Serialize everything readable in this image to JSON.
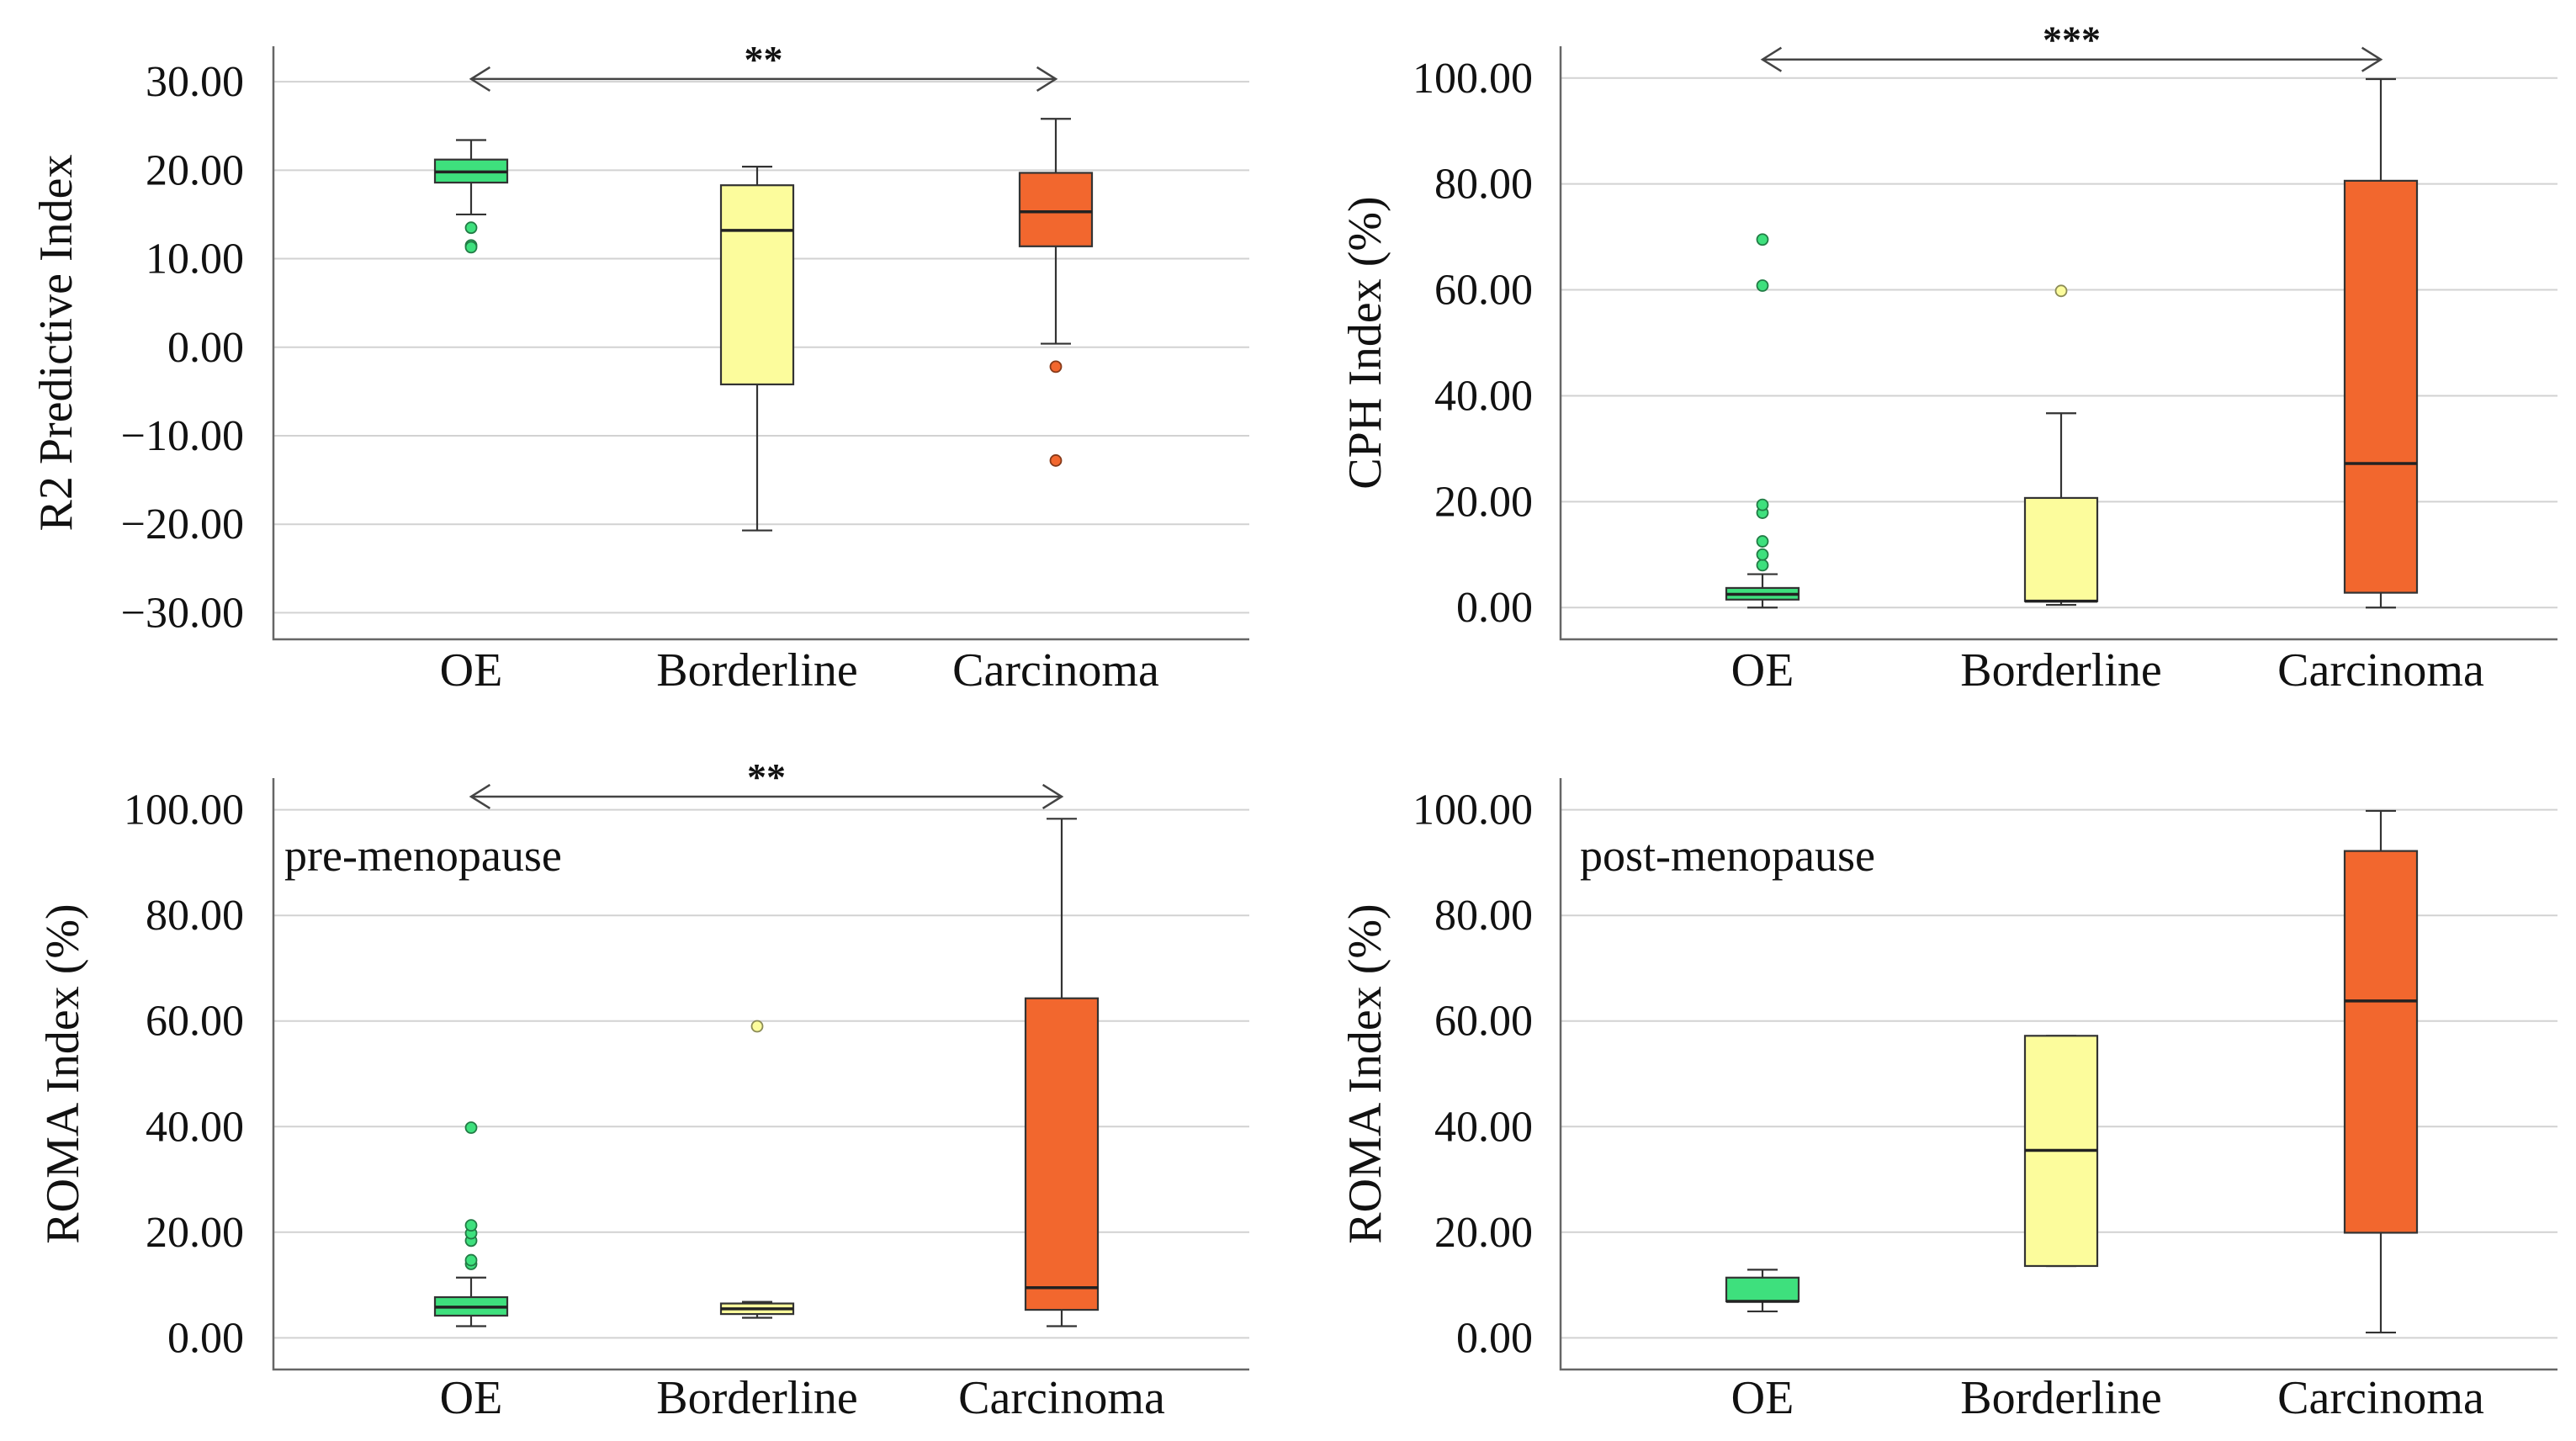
{
  "colors": {
    "OE": "#3ee07d",
    "Borderline": "#fcfc9c",
    "Carcinoma": "#f2672e"
  },
  "chart_data": [
    {
      "type": "box",
      "panel": "top-left",
      "ylabel": "R2 Predictive Index",
      "ylim": [
        -33,
        34
      ],
      "ticks": [
        30,
        20,
        10,
        0,
        -10,
        -20,
        -30
      ],
      "tick_labels": [
        "30.00",
        "20.00",
        "10.00",
        "0.00",
        "−10.00",
        "−20.00",
        "−30.00"
      ],
      "categories": [
        "OE",
        "Borderline",
        "Carcinoma"
      ],
      "boxes": [
        {
          "category": "OE",
          "whisker_low": 15.0,
          "q1": 18.6,
          "median": 19.8,
          "q3": 21.2,
          "whisker_high": 23.4,
          "outliers": [
            13.5,
            11.5,
            11.3
          ]
        },
        {
          "category": "Borderline",
          "whisker_low": -20.7,
          "q1": -4.2,
          "median": 13.2,
          "q3": 18.3,
          "whisker_high": 20.4,
          "outliers": []
        },
        {
          "category": "Carcinoma",
          "whisker_low": 0.4,
          "q1": 11.4,
          "median": 15.3,
          "q3": 19.7,
          "whisker_high": 25.8,
          "outliers": [
            -2.2,
            -12.8
          ]
        }
      ],
      "significance": {
        "from": "OE",
        "to": "Carcinoma",
        "label": "**",
        "y": 30.3
      },
      "annotation": ""
    },
    {
      "type": "box",
      "panel": "top-right",
      "ylabel": "CPH Index (%)",
      "ylim": [
        -6,
        106
      ],
      "ticks": [
        100,
        80,
        60,
        40,
        20,
        0
      ],
      "tick_labels": [
        "100.00",
        "80.00",
        "60.00",
        "40.00",
        "20.00",
        "0.00"
      ],
      "categories": [
        "OE",
        "Borderline",
        "Carcinoma"
      ],
      "boxes": [
        {
          "category": "OE",
          "whisker_low": 0.0,
          "q1": 1.5,
          "median": 2.5,
          "q3": 3.7,
          "whisker_high": 6.3,
          "outliers": [
            8.0,
            10.0,
            12.5,
            17.9,
            19.4,
            60.8,
            69.5
          ]
        },
        {
          "category": "Borderline",
          "whisker_low": 0.5,
          "q1": 1.2,
          "median": 1.2,
          "q3": 20.7,
          "whisker_high": 36.7,
          "outliers": [
            59.8
          ]
        },
        {
          "category": "Carcinoma",
          "whisker_low": 0.0,
          "q1": 2.8,
          "median": 27.2,
          "q3": 80.6,
          "whisker_high": 99.8,
          "outliers": []
        }
      ],
      "significance": {
        "from": "OE",
        "to": "Carcinoma",
        "label": "***",
        "y": 103.5
      },
      "annotation": ""
    },
    {
      "type": "box",
      "panel": "bottom-left",
      "ylabel": "ROMA Index (%)",
      "ylim": [
        -6,
        106
      ],
      "ticks": [
        100,
        80,
        60,
        40,
        20,
        0
      ],
      "tick_labels": [
        "100.00",
        "80.00",
        "60.00",
        "40.00",
        "20.00",
        "0.00"
      ],
      "categories": [
        "OE",
        "Borderline",
        "Carcinoma"
      ],
      "boxes": [
        {
          "category": "OE",
          "whisker_low": 2.2,
          "q1": 4.2,
          "median": 5.8,
          "q3": 7.7,
          "whisker_high": 11.4,
          "outliers": [
            14.0,
            14.7,
            18.4,
            19.8,
            21.3,
            39.8
          ]
        },
        {
          "category": "Borderline",
          "whisker_low": 3.8,
          "q1": 4.5,
          "median": 5.5,
          "q3": 6.5,
          "whisker_high": 6.8,
          "outliers": [
            59.0
          ]
        },
        {
          "category": "Carcinoma",
          "whisker_low": 2.2,
          "q1": 5.3,
          "median": 9.5,
          "q3": 64.3,
          "whisker_high": 98.3,
          "outliers": []
        }
      ],
      "significance": {
        "from": "OE",
        "to": "Carcinoma",
        "label": "**",
        "y": 102.5
      },
      "annotation": "pre-menopause"
    },
    {
      "type": "box",
      "panel": "bottom-right",
      "ylabel": "ROMA Index (%)",
      "ylim": [
        -6,
        106
      ],
      "ticks": [
        100,
        80,
        60,
        40,
        20,
        0
      ],
      "tick_labels": [
        "100.00",
        "80.00",
        "60.00",
        "40.00",
        "20.00",
        "0.00"
      ],
      "categories": [
        "OE",
        "Borderline",
        "Carcinoma"
      ],
      "boxes": [
        {
          "category": "OE",
          "whisker_low": 5.0,
          "q1": 6.9,
          "median": 6.9,
          "q3": 11.4,
          "whisker_high": 12.9,
          "outliers": []
        },
        {
          "category": "Borderline",
          "whisker_low": 13.6,
          "q1": 13.6,
          "median": 35.5,
          "q3": 57.2,
          "whisker_high": 57.2,
          "outliers": []
        },
        {
          "category": "Carcinoma",
          "whisker_low": 1.0,
          "q1": 19.9,
          "median": 63.8,
          "q3": 92.2,
          "whisker_high": 99.8,
          "outliers": []
        }
      ],
      "significance": null,
      "annotation": "post-menopause"
    }
  ]
}
